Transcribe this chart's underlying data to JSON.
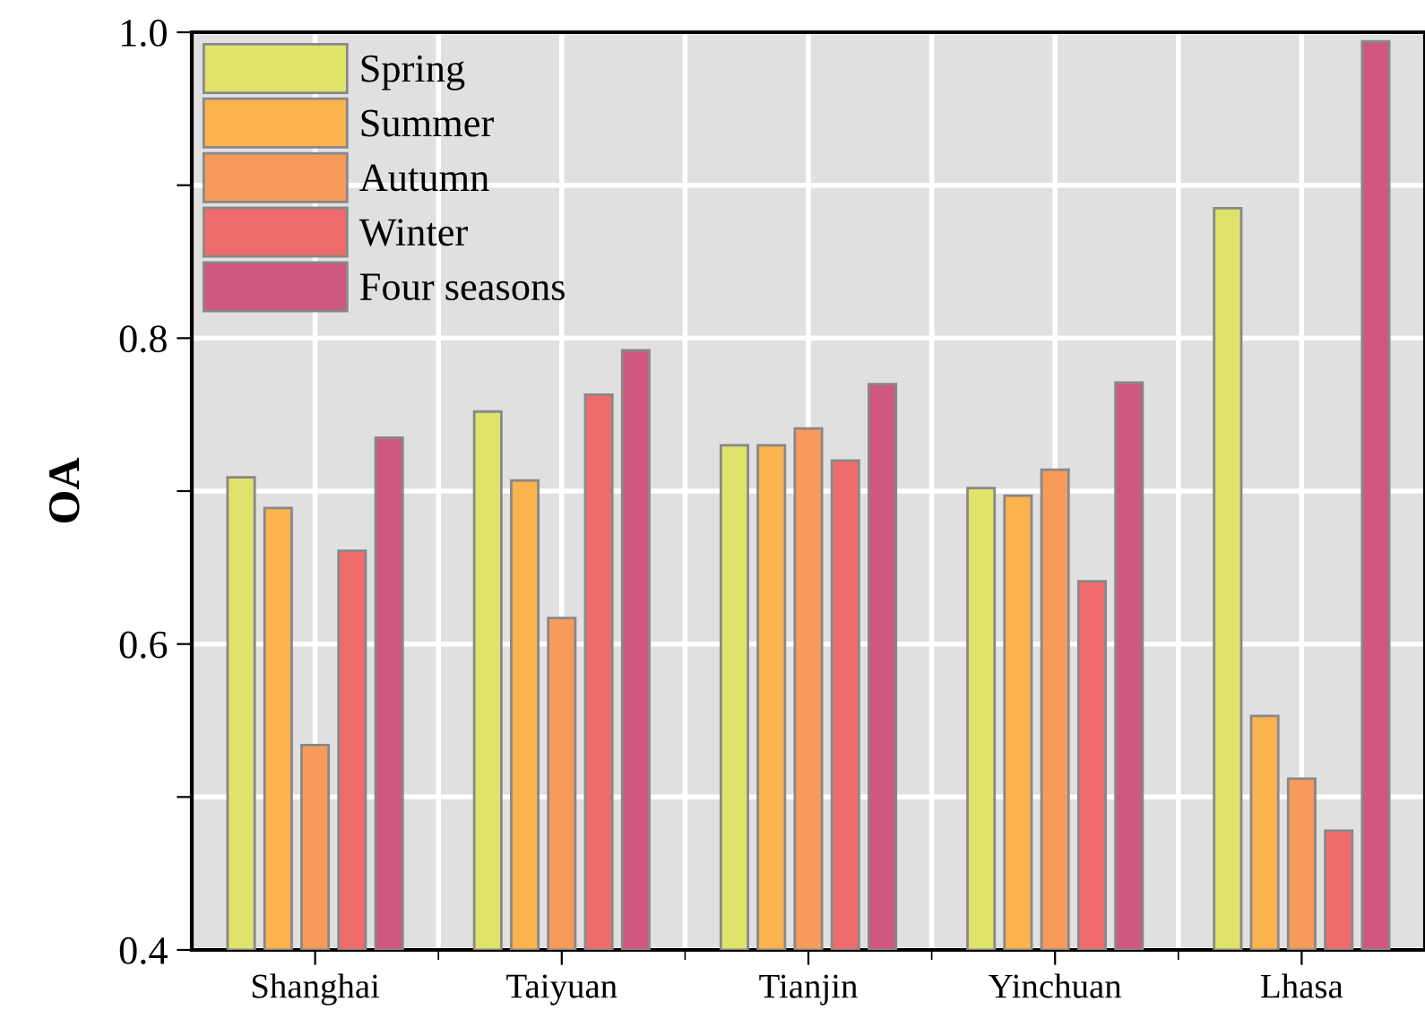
{
  "chart_data": {
    "type": "bar",
    "ylabel": "OA",
    "categories": [
      "Shanghai",
      "Taiyuan",
      "Tianjin",
      "Yinchuan",
      "Lhasa"
    ],
    "series": [
      {
        "name": "Spring",
        "color": "#e0e36a",
        "values": [
          0.709,
          0.752,
          0.73,
          0.702,
          0.885
        ]
      },
      {
        "name": "Summer",
        "color": "#fbb34d",
        "values": [
          0.689,
          0.707,
          0.73,
          0.697,
          0.553
        ]
      },
      {
        "name": "Autumn",
        "color": "#f79b5b",
        "values": [
          0.534,
          0.617,
          0.741,
          0.714,
          0.512
        ]
      },
      {
        "name": "Winter",
        "color": "#f06b6b",
        "values": [
          0.661,
          0.763,
          0.72,
          0.641,
          0.478
        ]
      },
      {
        "name": "Four seasons",
        "color": "#d0587e",
        "values": [
          0.735,
          0.792,
          0.77,
          0.771,
          0.994
        ]
      }
    ],
    "ylim": [
      0.4,
      1.0
    ],
    "yticks": [
      0.4,
      {
        "value": 0.5,
        "label": null
      },
      0.6,
      {
        "value": 0.7,
        "label": null
      },
      0.8,
      {
        "value": 0.9,
        "label": null
      },
      {
        "value": 1.0,
        "label": "1.0"
      }
    ],
    "grid": true,
    "legend": "top left"
  }
}
